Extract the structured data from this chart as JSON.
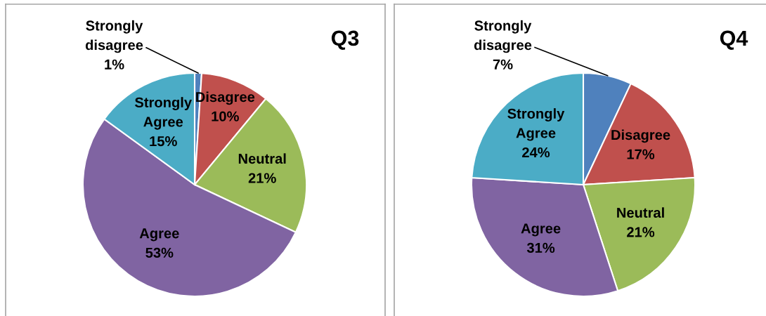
{
  "chart_data": [
    {
      "type": "pie",
      "title": "Q3",
      "categories": [
        "Strongly disagree",
        "Disagree",
        "Neutral",
        "Agree",
        "Strongly Agree"
      ],
      "values": [
        1,
        10,
        21,
        53,
        15
      ],
      "colors": [
        "#4f81bd",
        "#c0504d",
        "#9bbb59",
        "#8064a2",
        "#4bacc6"
      ],
      "value_labels": [
        "1%",
        "10%",
        "21%",
        "53%",
        "15%"
      ]
    },
    {
      "type": "pie",
      "title": "Q4",
      "categories": [
        "Strongly disagree",
        "Disagree",
        "Neutral",
        "Agree",
        "Strongly Agree"
      ],
      "values": [
        7,
        17,
        21,
        31,
        24
      ],
      "colors": [
        "#4f81bd",
        "#c0504d",
        "#9bbb59",
        "#8064a2",
        "#4bacc6"
      ],
      "value_labels": [
        "7%",
        "17%",
        "21%",
        "31%",
        "24%"
      ]
    }
  ]
}
